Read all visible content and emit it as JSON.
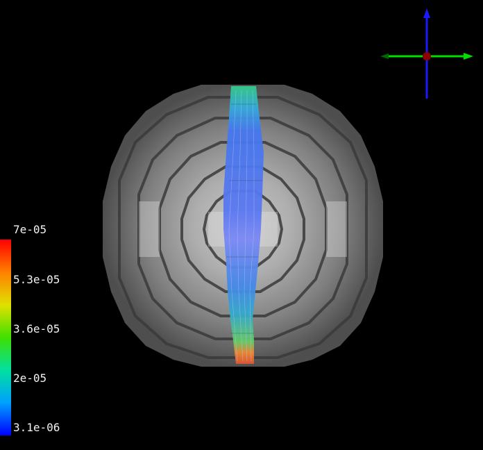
{
  "viewer": {
    "background_color": "#000000"
  },
  "scene": {
    "sphere_color": "#7a7a7a",
    "streamtube_colormap": "rainbow"
  },
  "orientation_axes": {
    "x_axis_color": "#00e000",
    "y_axis_color": "#1a1aff",
    "z_axis_color": "#8b0000"
  },
  "color_legend": {
    "colormap": [
      "#0000ff",
      "#00a0ff",
      "#00e0a0",
      "#40e000",
      "#e0e000",
      "#ff8000",
      "#ff0000"
    ],
    "labels": [
      "7e-05",
      "5.3e-05",
      "3.6e-05",
      "2e-05",
      "3.1e-06"
    ]
  }
}
